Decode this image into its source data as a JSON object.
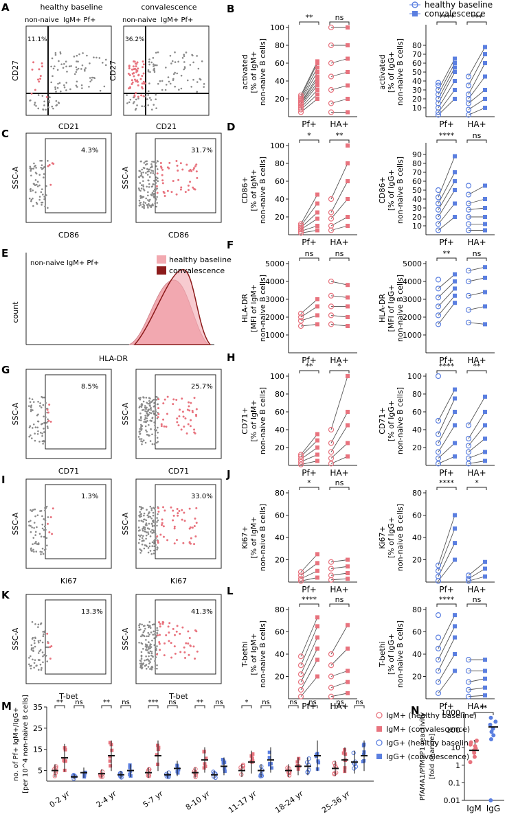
{
  "colors": {
    "pink": "#e8737e",
    "blue": "#5b7fe0",
    "grey": "#8a8a8a",
    "hist_light": "#f2a9b0",
    "hist_dark": "#8c1b1b",
    "line": "#555555"
  },
  "legend_top": {
    "healthy": "healthy baseline",
    "conv": "convalescence"
  },
  "panelA": {
    "letter": "A",
    "plots": [
      {
        "title": "healthy baseline",
        "sub1": "non-naive",
        "sub2": "IgM+ Pf+",
        "pct": "11.1%",
        "xlabel": "CD21",
        "ylabel": "CD27"
      },
      {
        "title": "convalescence",
        "sub1": "non-naive",
        "sub2": "IgM+ Pf+",
        "pct": "36.2%",
        "xlabel": "CD21",
        "ylabel": "CD27"
      }
    ]
  },
  "gates": [
    {
      "letter": "C",
      "ylabel": "SSC-A",
      "xlabel": "CD86",
      "pct": [
        "4.3%",
        "31.7%"
      ]
    },
    {
      "letter": "G",
      "ylabel": "SSC-A",
      "xlabel": "CD71",
      "pct": [
        "8.5%",
        "25.7%"
      ]
    },
    {
      "letter": "I",
      "ylabel": "SSC-A",
      "xlabel": "Ki67",
      "pct": [
        "1.3%",
        "33.0%"
      ]
    },
    {
      "letter": "K",
      "ylabel": "SSC-A",
      "xlabel": "T-bet",
      "pct": [
        "13.3%",
        "41.3%"
      ]
    }
  ],
  "panelE": {
    "letter": "E",
    "label": "non-naive  IgM+ Pf+",
    "ylabel": "count",
    "xlabel": "HLA-DR",
    "legend": [
      "healthy baseline",
      "convalescence"
    ]
  },
  "chart_data": [
    {
      "panel": "B",
      "type": "paired-dot",
      "series_color": "pink",
      "ylabel": [
        "activated",
        "[% of IgM+",
        "non-naive B cells]"
      ],
      "categories": [
        "Pf+",
        "HA+"
      ],
      "ylim": [
        0,
        100
      ],
      "ticks": [
        20,
        40,
        60,
        80,
        100
      ],
      "significance": [
        "**",
        "ns"
      ],
      "groups": [
        {
          "base": [
            5,
            8,
            10,
            12,
            14,
            15,
            16,
            18,
            20,
            22,
            24
          ],
          "conv": [
            20,
            25,
            30,
            35,
            38,
            42,
            45,
            50,
            55,
            60,
            62
          ]
        },
        {
          "base": [
            5,
            15,
            30,
            45,
            60,
            80,
            100
          ],
          "conv": [
            5,
            20,
            35,
            50,
            65,
            80,
            100
          ]
        }
      ]
    },
    {
      "panel": "B2",
      "type": "paired-dot",
      "series_color": "blue",
      "ylabel": [
        "activated",
        "[% of IgG+",
        "non-naive B cells]"
      ],
      "categories": [
        "Pf+",
        "HA+"
      ],
      "ylim": [
        0,
        100
      ],
      "ticks": [
        10,
        20,
        30,
        40,
        50,
        60,
        70,
        80
      ],
      "significance": [
        "****",
        "***"
      ],
      "groups": [
        {
          "base": [
            2,
            5,
            10,
            15,
            20,
            25,
            30,
            35,
            38
          ],
          "conv": [
            20,
            30,
            40,
            50,
            55,
            60,
            65
          ]
        },
        {
          "base": [
            2,
            8,
            15,
            20,
            25,
            35,
            45
          ],
          "conv": [
            10,
            20,
            30,
            45,
            60,
            70,
            78
          ]
        }
      ]
    },
    {
      "panel": "D",
      "type": "paired-dot",
      "series_color": "pink",
      "ylabel": [
        "CD86+",
        "[% of IgM+",
        "non-naive B cells]"
      ],
      "categories": [
        "Pf+",
        "HA+"
      ],
      "ylim": [
        0,
        100
      ],
      "ticks": [
        20,
        40,
        60,
        80,
        100
      ],
      "significance": [
        "*",
        "**"
      ],
      "groups": [
        {
          "base": [
            2,
            4,
            6,
            8,
            10,
            12
          ],
          "conv": [
            5,
            10,
            18,
            25,
            35,
            45
          ]
        },
        {
          "base": [
            5,
            10,
            18,
            25,
            40
          ],
          "conv": [
            10,
            20,
            40,
            60,
            80,
            100
          ]
        }
      ]
    },
    {
      "panel": "D2",
      "type": "paired-dot",
      "series_color": "blue",
      "ylabel": [
        "CD86+",
        "[% of IgG+",
        "non-naive B cells]"
      ],
      "categories": [
        "Pf+",
        "HA+"
      ],
      "ylim": [
        0,
        100
      ],
      "ticks": [
        10,
        20,
        30,
        40,
        50,
        60,
        70,
        80,
        90
      ],
      "significance": [
        "****",
        "ns"
      ],
      "groups": [
        {
          "base": [
            5,
            12,
            20,
            28,
            35,
            42,
            50
          ],
          "conv": [
            20,
            35,
            50,
            60,
            70,
            88
          ]
        },
        {
          "base": [
            5,
            12,
            20,
            28,
            35,
            45,
            55
          ],
          "conv": [
            5,
            12,
            20,
            30,
            40,
            55
          ]
        }
      ]
    },
    {
      "panel": "F",
      "type": "paired-dot",
      "series_color": "pink",
      "ylabel": [
        "HLA-DR",
        "[MFI of IgM+",
        "non-naive B cells]"
      ],
      "categories": [
        "Pf+",
        "HA+"
      ],
      "ylim": [
        0,
        5000
      ],
      "ticks": [
        1000,
        2000,
        3000,
        4000,
        5000
      ],
      "significance": [
        "ns",
        "ns"
      ],
      "groups": [
        {
          "base": [
            1500,
            1800,
            2000,
            2200
          ],
          "conv": [
            1600,
            2100,
            2600,
            3000
          ]
        },
        {
          "base": [
            1600,
            2100,
            2600,
            3200,
            4000
          ],
          "conv": [
            1500,
            2000,
            2600,
            3100,
            3800
          ]
        }
      ]
    },
    {
      "panel": "F2",
      "type": "paired-dot",
      "series_color": "blue",
      "ylabel": [
        "HLA-DR",
        "[MFI of IgG+",
        "non-naive B cells]"
      ],
      "categories": [
        "Pf+",
        "HA+"
      ],
      "ylim": [
        0,
        5000
      ],
      "ticks": [
        1000,
        2000,
        3000,
        4000,
        5000
      ],
      "significance": [
        "**",
        "ns"
      ],
      "groups": [
        {
          "base": [
            1600,
            2100,
            2600,
            3100,
            3600,
            4100
          ],
          "conv": [
            2800,
            3200,
            3600,
            4000,
            4400
          ]
        },
        {
          "base": [
            1700,
            2400,
            3200,
            4000,
            4600
          ],
          "conv": [
            1600,
            2600,
            3400,
            4200,
            4800
          ]
        }
      ]
    },
    {
      "panel": "H",
      "type": "paired-dot",
      "series_color": "pink",
      "ylabel": [
        "CD71+",
        "[% of IgM+",
        "non-naive B cells]"
      ],
      "categories": [
        "Pf+",
        "HA+"
      ],
      "ylim": [
        0,
        100
      ],
      "ticks": [
        20,
        40,
        60,
        80,
        100
      ],
      "significance": [
        "**",
        "*"
      ],
      "groups": [
        {
          "base": [
            1,
            4,
            7,
            10,
            12
          ],
          "conv": [
            5,
            12,
            20,
            28,
            35
          ]
        },
        {
          "base": [
            2,
            8,
            15,
            25,
            40
          ],
          "conv": [
            10,
            25,
            45,
            60,
            100
          ]
        }
      ]
    },
    {
      "panel": "H2",
      "type": "paired-dot",
      "series_color": "blue",
      "ylabel": [
        "CD71+",
        "[% of IgG+",
        "non-naive B cells]"
      ],
      "categories": [
        "Pf+",
        "HA+"
      ],
      "ylim": [
        0,
        100
      ],
      "ticks": [
        20,
        40,
        60,
        80,
        100
      ],
      "significance": [
        "****",
        "**"
      ],
      "groups": [
        {
          "base": [
            2,
            8,
            15,
            25,
            35,
            50,
            100
          ],
          "conv": [
            10,
            25,
            45,
            60,
            75,
            85
          ]
        },
        {
          "base": [
            2,
            8,
            15,
            22,
            30,
            45
          ],
          "conv": [
            5,
            15,
            30,
            45,
            60,
            77
          ]
        }
      ]
    },
    {
      "panel": "J",
      "type": "paired-dot",
      "series_color": "pink",
      "ylabel": [
        "Ki67+",
        "[% of IgM+",
        "non-naive B cells]"
      ],
      "categories": [
        "Pf+",
        "HA+"
      ],
      "ylim": [
        0,
        80
      ],
      "ticks": [
        20,
        40,
        60,
        80
      ],
      "significance": [
        "*",
        "ns"
      ],
      "groups": [
        {
          "base": [
            1,
            3,
            6,
            9
          ],
          "conv": [
            4,
            10,
            17,
            25
          ]
        },
        {
          "base": [
            2,
            6,
            12,
            18
          ],
          "conv": [
            3,
            8,
            14,
            20
          ]
        }
      ]
    },
    {
      "panel": "J2",
      "type": "paired-dot",
      "series_color": "blue",
      "ylabel": [
        "Ki67+",
        "[% of IgG+",
        "non-naive B cells]"
      ],
      "categories": [
        "Pf+",
        "HA+"
      ],
      "ylim": [
        0,
        80
      ],
      "ticks": [
        20,
        40,
        60,
        80
      ],
      "significance": [
        "****",
        "*"
      ],
      "groups": [
        {
          "base": [
            1,
            5,
            10,
            15
          ],
          "conv": [
            20,
            35,
            48,
            60
          ]
        },
        {
          "base": [
            1,
            3,
            6
          ],
          "conv": [
            5,
            12,
            18
          ]
        }
      ]
    },
    {
      "panel": "L",
      "type": "paired-dot",
      "series_color": "pink",
      "ylabel": [
        "T-bethi",
        "[% of IgM+",
        "non-naive B cells]"
      ],
      "categories": [
        "Pf+",
        "HA+"
      ],
      "ylim": [
        0,
        80
      ],
      "ticks": [
        20,
        40,
        60,
        80
      ],
      "significance": [
        "****",
        "ns"
      ],
      "groups": [
        {
          "base": [
            2,
            8,
            15,
            22,
            30,
            38
          ],
          "conv": [
            20,
            35,
            45,
            55,
            65,
            73
          ]
        },
        {
          "base": [
            2,
            10,
            20,
            30,
            40
          ],
          "conv": [
            5,
            15,
            25,
            45,
            66
          ]
        }
      ]
    },
    {
      "panel": "L2",
      "type": "paired-dot",
      "series_color": "blue",
      "ylabel": [
        "T-bethi",
        "[% of IgG+",
        "non-naive B cells]"
      ],
      "categories": [
        "Pf+",
        "HA+"
      ],
      "ylim": [
        0,
        80
      ],
      "ticks": [
        20,
        40,
        60,
        80
      ],
      "significance": [
        "****",
        "ns"
      ],
      "groups": [
        {
          "base": [
            5,
            15,
            25,
            35,
            45,
            55,
            75
          ],
          "conv": [
            25,
            40,
            55,
            65,
            75
          ]
        },
        {
          "base": [
            2,
            8,
            15,
            25,
            35
          ],
          "conv": [
            3,
            10,
            18,
            25,
            35
          ]
        }
      ]
    },
    {
      "panel": "M",
      "type": "scatter",
      "ylabel": [
        "no. of Pf+ IgM+/IgG+",
        "[per 10^4 non-naive B cells]"
      ],
      "ylim": [
        0,
        35
      ],
      "ticks": [
        5,
        15,
        25,
        35
      ],
      "categories": [
        "0-2 yr",
        "2-4 yr",
        "5-7 yr",
        "8-10 yr",
        "11-17 yr",
        "18-24 yr",
        "25-36 yr"
      ],
      "significance": [
        [
          "**",
          "ns"
        ],
        [
          "**",
          "ns"
        ],
        [
          "***",
          "ns"
        ],
        [
          "**",
          "ns"
        ],
        [
          "*",
          "ns"
        ],
        [
          "ns",
          "ns"
        ],
        [
          "ns",
          "ns"
        ]
      ],
      "igm_base_mean": [
        5,
        3.5,
        4,
        4,
        5,
        5,
        6
      ],
      "igm_conv_mean": [
        11,
        12,
        12,
        10,
        9,
        7,
        10
      ],
      "igg_base_mean": [
        2,
        3,
        3,
        3,
        5,
        7,
        9
      ],
      "igg_conv_mean": [
        4,
        5,
        6,
        7,
        10,
        12,
        12
      ],
      "legend": [
        "IgM+ (healthy baseline)",
        "IgM+ (convalescence)",
        "IgG+ (healthy baseline)",
        "IgG+ (convalescence)"
      ]
    },
    {
      "panel": "N",
      "type": "scatter",
      "ylabel": [
        "PfAMA1/PfMSP1 reactivity",
        "[fold change]"
      ],
      "categories": [
        "IgM",
        "IgG"
      ],
      "yscale": "log",
      "ticks": [
        "0.01",
        "0.1",
        "1",
        "10",
        "100",
        "1000"
      ],
      "significance": "**",
      "IgM": [
        1.5,
        3,
        5,
        7,
        9,
        12,
        15,
        20,
        25
      ],
      "IgG": [
        0.01,
        30,
        50,
        80,
        120,
        200,
        300,
        500
      ]
    }
  ]
}
